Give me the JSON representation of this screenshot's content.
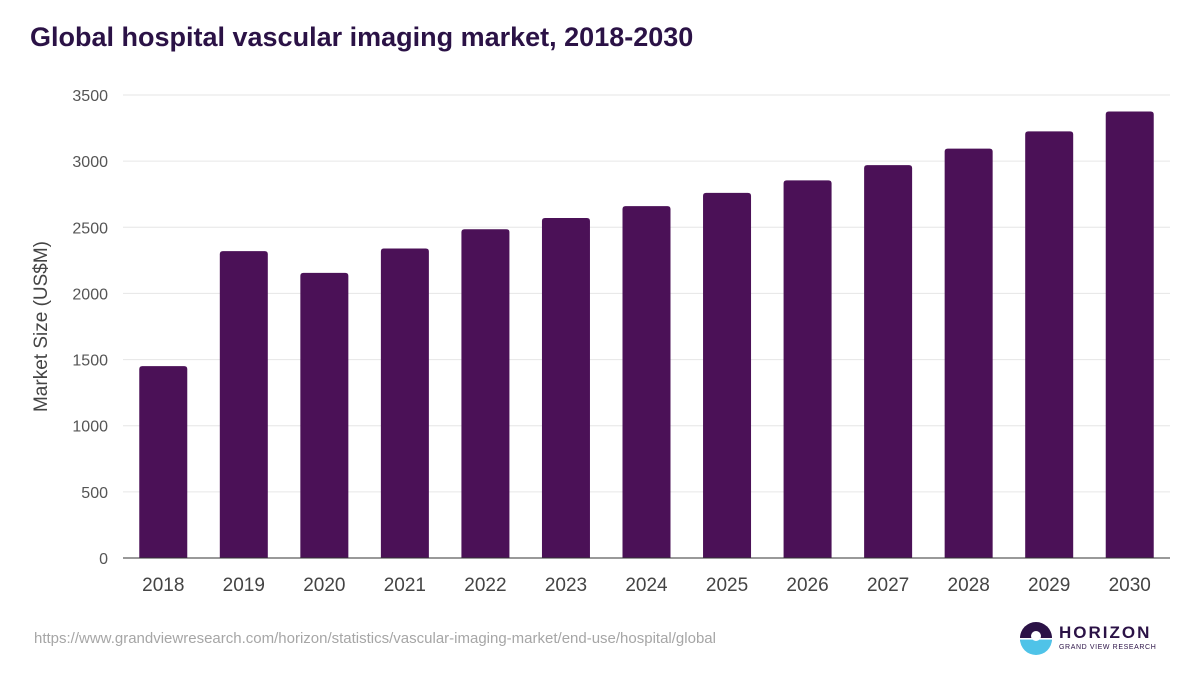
{
  "title": "Global hospital vascular imaging market, 2018-2030",
  "source_url": "https://www.grandviewresearch.com/horizon/statistics/vascular-imaging-market/end-use/hospital/global",
  "brand": {
    "name": "HORIZON",
    "sub": "GRAND VIEW RESEARCH",
    "colors": {
      "primary": "#2b1246",
      "accent": "#4fc3e8"
    },
    "icon": "horizon-logo-icon"
  },
  "colors": {
    "bar": "#4b1157",
    "grid": "#e6e6e6",
    "axis": "#333333",
    "tick_text": "#555555",
    "title": "#2b1246"
  },
  "chart_data": {
    "type": "bar",
    "title": "Global hospital vascular imaging market, 2018-2030",
    "xlabel": "",
    "ylabel": "Market Size (US$M)",
    "categories": [
      "2018",
      "2019",
      "2020",
      "2021",
      "2022",
      "2023",
      "2024",
      "2025",
      "2026",
      "2027",
      "2028",
      "2029",
      "2030"
    ],
    "values": [
      1450,
      2320,
      2155,
      2340,
      2485,
      2570,
      2660,
      2760,
      2855,
      2970,
      3095,
      3225,
      3375
    ],
    "ylim": [
      0,
      3500
    ],
    "yticks": [
      0,
      500,
      1000,
      1500,
      2000,
      2500,
      3000,
      3500
    ],
    "grid": true,
    "legend": "none"
  }
}
